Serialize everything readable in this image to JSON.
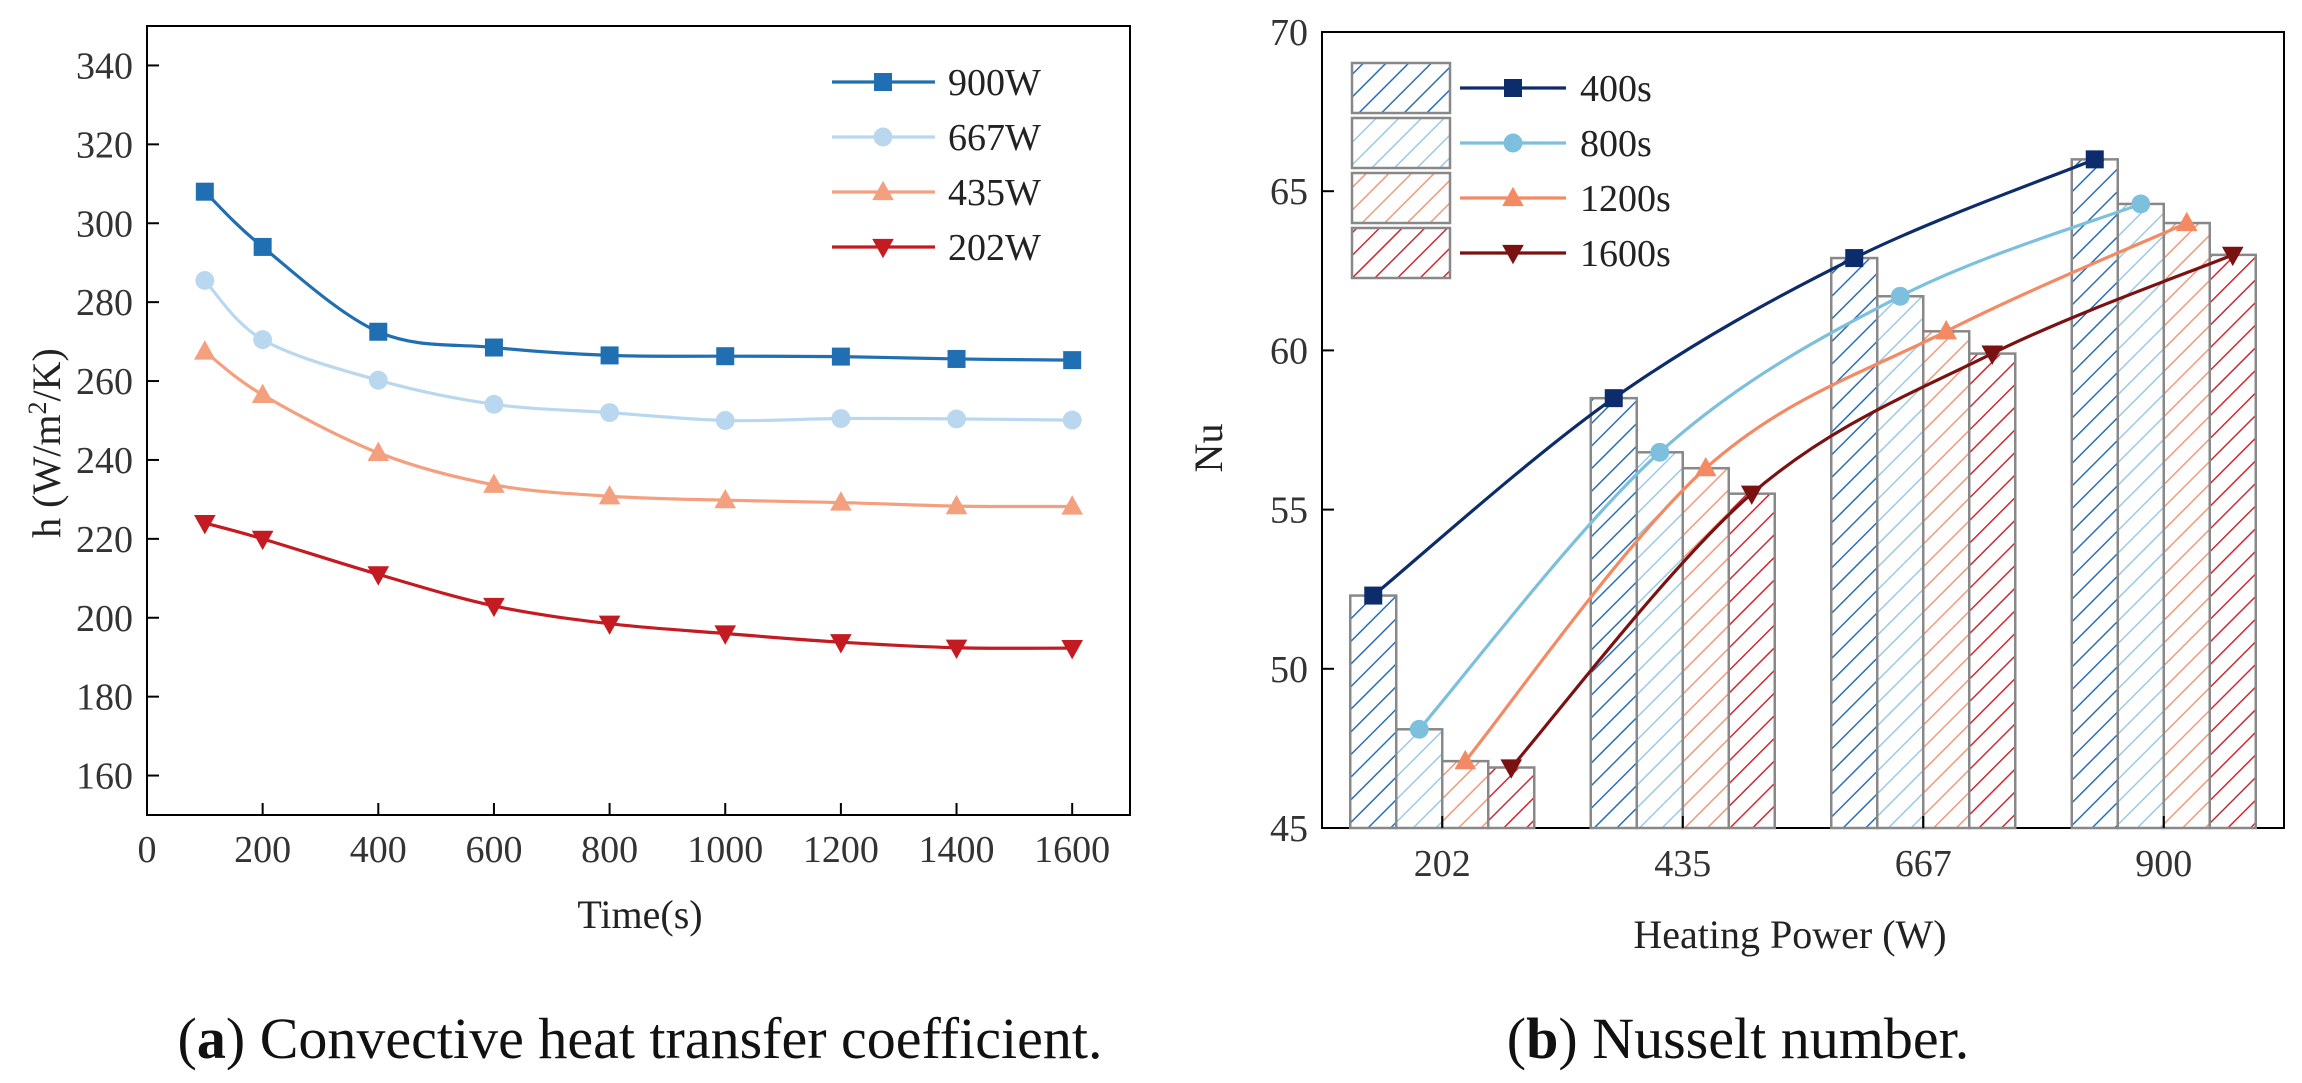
{
  "chart_data": [
    {
      "id": "a",
      "type": "line",
      "title": "",
      "xlabel": "Time(s)",
      "ylabel": "h (W/m²/K)",
      "xlim": [
        0,
        1700
      ],
      "ylim": [
        150,
        350
      ],
      "xticks": [
        0,
        200,
        400,
        600,
        800,
        1000,
        1200,
        1400,
        1600
      ],
      "yticks": [
        160,
        180,
        200,
        220,
        240,
        260,
        280,
        300,
        320,
        340
      ],
      "legend_position": "top-right",
      "grid": false,
      "caption": {
        "label": "a",
        "text": " Convective heat transfer coefficient."
      },
      "x": [
        100,
        200,
        400,
        600,
        800,
        1000,
        1200,
        1400,
        1600
      ],
      "series": [
        {
          "name": "900W",
          "color": "#1f6fb2",
          "marker": "square",
          "values": [
            308,
            294,
            272.5,
            268.5,
            266.5,
            266.3,
            266.2,
            265.6,
            265.3
          ]
        },
        {
          "name": "667W",
          "color": "#b9d8ef",
          "marker": "circle",
          "values": [
            285.5,
            270.5,
            260.2,
            254.1,
            252.0,
            250.0,
            250.5,
            250.4,
            250.1
          ]
        },
        {
          "name": "435W",
          "color": "#f4a07f",
          "marker": "triangle-up",
          "values": [
            267.5,
            256.5,
            241.8,
            233.7,
            230.8,
            229.8,
            229.2,
            228.3,
            228.2
          ]
        },
        {
          "name": "202W",
          "color": "#c41a22",
          "marker": "triangle-down",
          "values": [
            224,
            220,
            211,
            203,
            198.5,
            196,
            193.8,
            192.4,
            192.3
          ]
        }
      ]
    },
    {
      "id": "b",
      "type": "bar",
      "title": "",
      "xlabel": "Heating Power (W)",
      "ylabel": "Nu",
      "ylim": [
        45,
        70
      ],
      "yticks": [
        45,
        50,
        55,
        60,
        65,
        70
      ],
      "categories": [
        "202",
        "435",
        "667",
        "900"
      ],
      "legend_position": "top-left",
      "grid": false,
      "caption": {
        "label": "b",
        "text": " Nusselt number."
      },
      "series": [
        {
          "name": "400s",
          "bar_color": "#2a6fb6",
          "line_color": "#0d2c6b",
          "marker": "square",
          "values": [
            52.3,
            58.5,
            62.9,
            66.0
          ]
        },
        {
          "name": "800s",
          "bar_color": "#9dc9e4",
          "line_color": "#7cc0de",
          "marker": "circle",
          "values": [
            48.1,
            56.8,
            61.7,
            64.6
          ]
        },
        {
          "name": "1200s",
          "bar_color": "#f19a7c",
          "line_color": "#f38a63",
          "marker": "triangle-up",
          "values": [
            47.1,
            56.3,
            60.6,
            64.0
          ]
        },
        {
          "name": "1600s",
          "bar_color": "#cc2a34",
          "line_color": "#7b1212",
          "marker": "triangle-down",
          "values": [
            46.9,
            55.5,
            59.9,
            63.0
          ]
        }
      ]
    }
  ]
}
